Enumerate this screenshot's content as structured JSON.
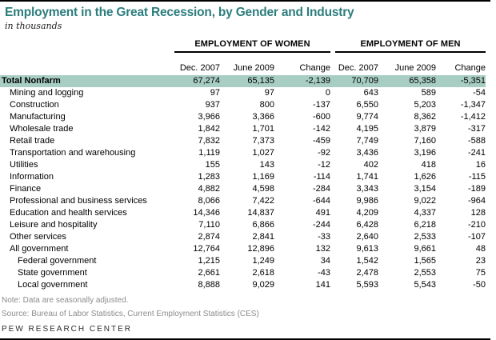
{
  "title": "Employment in the Great Recession, by Gender and Industry",
  "subtitle": "in thousands",
  "table": {
    "groups": [
      {
        "label": "EMPLOYMENT OF WOMEN"
      },
      {
        "label": "EMPLOYMENT OF MEN"
      }
    ],
    "columns": [
      "Dec. 2007",
      "June 2009",
      "Change",
      "Dec. 2007",
      "June 2009",
      "Change"
    ],
    "rows": [
      {
        "label": "Total Nonfarm",
        "style": "total",
        "values": [
          "67,274",
          "65,135",
          "-2,139",
          "70,709",
          "65,358",
          "-5,351"
        ]
      },
      {
        "label": "Mining and logging",
        "style": "industry",
        "values": [
          "97",
          "97",
          "0",
          "643",
          "589",
          "-54"
        ]
      },
      {
        "label": "Construction",
        "style": "industry",
        "values": [
          "937",
          "800",
          "-137",
          "6,550",
          "5,203",
          "-1,347"
        ]
      },
      {
        "label": "Manufacturing",
        "style": "industry",
        "values": [
          "3,966",
          "3,366",
          "-600",
          "9,774",
          "8,362",
          "-1,412"
        ]
      },
      {
        "label": "Wholesale trade",
        "style": "industry",
        "values": [
          "1,842",
          "1,701",
          "-142",
          "4,195",
          "3,879",
          "-317"
        ]
      },
      {
        "label": "Retail trade",
        "style": "industry",
        "values": [
          "7,832",
          "7,373",
          "-459",
          "7,749",
          "7,160",
          "-588"
        ]
      },
      {
        "label": "Transportation and warehousing",
        "style": "industry",
        "values": [
          "1,119",
          "1,027",
          "-92",
          "3,436",
          "3,196",
          "-241"
        ]
      },
      {
        "label": "Utilities",
        "style": "industry",
        "values": [
          "155",
          "143",
          "-12",
          "402",
          "418",
          "16"
        ]
      },
      {
        "label": "Information",
        "style": "industry",
        "values": [
          "1,283",
          "1,169",
          "-114",
          "1,741",
          "1,626",
          "-115"
        ]
      },
      {
        "label": "Finance",
        "style": "industry",
        "values": [
          "4,882",
          "4,598",
          "-284",
          "3,343",
          "3,154",
          "-189"
        ]
      },
      {
        "label": "Professional and business services",
        "style": "industry",
        "values": [
          "8,066",
          "7,422",
          "-644",
          "9,986",
          "9,022",
          "-964"
        ]
      },
      {
        "label": "Education and health services",
        "style": "industry",
        "values": [
          "14,346",
          "14,837",
          "491",
          "4,209",
          "4,337",
          "128"
        ]
      },
      {
        "label": "Leisure and hospitality",
        "style": "industry",
        "values": [
          "7,110",
          "6,866",
          "-244",
          "6,428",
          "6,218",
          "-210"
        ]
      },
      {
        "label": "Other services",
        "style": "industry",
        "values": [
          "2,874",
          "2,841",
          "-33",
          "2,640",
          "2,533",
          "-107"
        ]
      },
      {
        "label": "All government",
        "style": "industry",
        "values": [
          "12,764",
          "12,896",
          "132",
          "9,613",
          "9,661",
          "48"
        ]
      },
      {
        "label": "Federal government",
        "style": "sub",
        "values": [
          "1,215",
          "1,249",
          "34",
          "1,542",
          "1,565",
          "23"
        ]
      },
      {
        "label": "State government",
        "style": "sub",
        "values": [
          "2,661",
          "2,618",
          "-43",
          "2,478",
          "2,553",
          "75"
        ]
      },
      {
        "label": "Local government",
        "style": "sub",
        "values": [
          "8,888",
          "9,029",
          "141",
          "5,593",
          "5,543",
          "-50"
        ]
      }
    ]
  },
  "note": "Note: Data are seasonally adjusted.",
  "source": "Source: Bureau of Labor Statistics, Current Employment Statistics (CES)",
  "branding": "PEW RESEARCH CENTER",
  "colors": {
    "accent_teal": "#2d7d7d",
    "highlight_row": "#a8cec4",
    "footer_gray": "#8c8c8c",
    "rule_black": "#000000"
  },
  "chart_data": {
    "type": "table",
    "title": "Employment in the Great Recession, by Gender and Industry",
    "units": "thousands",
    "note": "Data are seasonally adjusted.",
    "source": "Bureau of Labor Statistics, Current Employment Statistics (CES)",
    "column_groups": [
      "Employment of Women",
      "Employment of Men"
    ],
    "columns": [
      "Women Dec. 2007",
      "Women June 2009",
      "Women Change",
      "Men Dec. 2007",
      "Men June 2009",
      "Men Change"
    ],
    "rows": [
      {
        "industry": "Total Nonfarm",
        "indent": 0,
        "values": [
          67274,
          65135,
          -2139,
          70709,
          65358,
          -5351
        ]
      },
      {
        "industry": "Mining and logging",
        "indent": 1,
        "values": [
          97,
          97,
          0,
          643,
          589,
          -54
        ]
      },
      {
        "industry": "Construction",
        "indent": 1,
        "values": [
          937,
          800,
          -137,
          6550,
          5203,
          -1347
        ]
      },
      {
        "industry": "Manufacturing",
        "indent": 1,
        "values": [
          3966,
          3366,
          -600,
          9774,
          8362,
          -1412
        ]
      },
      {
        "industry": "Wholesale trade",
        "indent": 1,
        "values": [
          1842,
          1701,
          -142,
          4195,
          3879,
          -317
        ]
      },
      {
        "industry": "Retail trade",
        "indent": 1,
        "values": [
          7832,
          7373,
          -459,
          7749,
          7160,
          -588
        ]
      },
      {
        "industry": "Transportation and warehousing",
        "indent": 1,
        "values": [
          1119,
          1027,
          -92,
          3436,
          3196,
          -241
        ]
      },
      {
        "industry": "Utilities",
        "indent": 1,
        "values": [
          155,
          143,
          -12,
          402,
          418,
          16
        ]
      },
      {
        "industry": "Information",
        "indent": 1,
        "values": [
          1283,
          1169,
          -114,
          1741,
          1626,
          -115
        ]
      },
      {
        "industry": "Finance",
        "indent": 1,
        "values": [
          4882,
          4598,
          -284,
          3343,
          3154,
          -189
        ]
      },
      {
        "industry": "Professional and business services",
        "indent": 1,
        "values": [
          8066,
          7422,
          -644,
          9986,
          9022,
          -964
        ]
      },
      {
        "industry": "Education and health services",
        "indent": 1,
        "values": [
          14346,
          14837,
          491,
          4209,
          4337,
          128
        ]
      },
      {
        "industry": "Leisure and hospitality",
        "indent": 1,
        "values": [
          7110,
          6866,
          -244,
          6428,
          6218,
          -210
        ]
      },
      {
        "industry": "Other services",
        "indent": 1,
        "values": [
          2874,
          2841,
          -33,
          2640,
          2533,
          -107
        ]
      },
      {
        "industry": "All government",
        "indent": 1,
        "values": [
          12764,
          12896,
          132,
          9613,
          9661,
          48
        ]
      },
      {
        "industry": "Federal government",
        "indent": 2,
        "values": [
          1215,
          1249,
          34,
          1542,
          1565,
          23
        ]
      },
      {
        "industry": "State government",
        "indent": 2,
        "values": [
          2661,
          2618,
          -43,
          2478,
          2553,
          75
        ]
      },
      {
        "industry": "Local government",
        "indent": 2,
        "values": [
          8888,
          9029,
          141,
          5593,
          5543,
          -50
        ]
      }
    ]
  }
}
